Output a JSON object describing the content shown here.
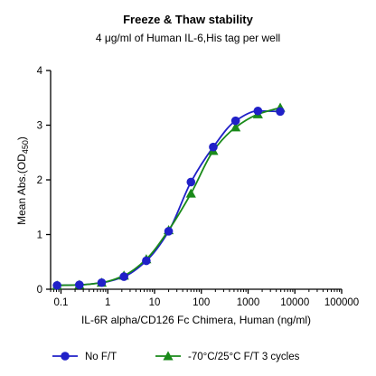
{
  "chart_data": {
    "type": "scatter",
    "title": "Freeze & Thaw stability",
    "subtitle": "4 μg/ml of Human IL-6,His tag per well",
    "xlabel": "IL-6R alpha/CD126 Fc Chimera, Human (ng/ml)",
    "ylabel_main": "Mean Abs.(OD",
    "ylabel_sub": "450",
    "ylabel_end": ")",
    "x_scale": "log",
    "xlim": [
      0.06,
      100000
    ],
    "ylim": [
      0,
      4
    ],
    "x_ticks": [
      0.1,
      1,
      10,
      100,
      1000,
      10000,
      100000
    ],
    "x_tick_labels": [
      "0.1",
      "1",
      "10",
      "100",
      "1000",
      "10000",
      "100000"
    ],
    "y_ticks": [
      0,
      1,
      2,
      3,
      4
    ],
    "y_tick_labels": [
      "0",
      "1",
      "2",
      "3",
      "4"
    ],
    "grid": false,
    "legend_position": "bottom",
    "series": [
      {
        "name": "No F/T",
        "marker": "circle",
        "color": "#2020c8",
        "x": [
          0.0823,
          0.247,
          0.741,
          2.22,
          6.67,
          20,
          60,
          180,
          540,
          1620,
          4860
        ],
        "y": [
          0.07,
          0.08,
          0.12,
          0.23,
          0.52,
          1.06,
          1.96,
          2.6,
          3.08,
          3.26,
          3.25
        ]
      },
      {
        "name": "-70°C/25°C F/T 3 cycles",
        "marker": "triangle",
        "color": "#1a8a1a",
        "x": [
          0.0823,
          0.247,
          0.741,
          2.22,
          6.67,
          20,
          60,
          180,
          540,
          1620,
          4860
        ],
        "y": [
          0.07,
          0.08,
          0.12,
          0.25,
          0.55,
          1.08,
          1.75,
          2.53,
          2.96,
          3.2,
          3.32
        ]
      }
    ]
  }
}
